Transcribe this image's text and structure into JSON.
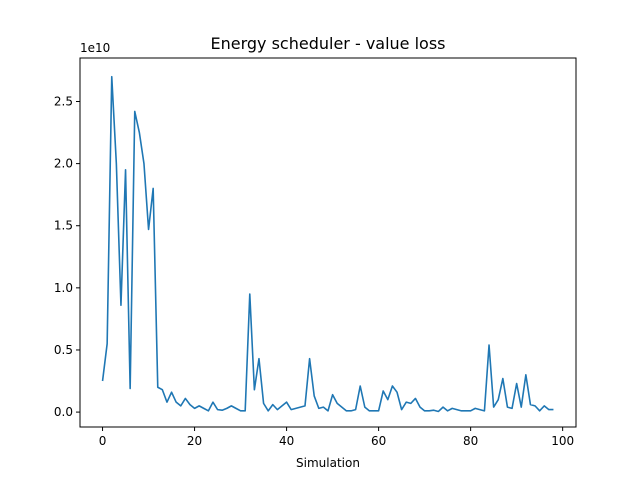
{
  "chart_data": {
    "type": "line",
    "title": "Energy scheduler - value loss",
    "xlabel": "Simulation",
    "ylabel": "",
    "y_offset_label": "1e10",
    "y_multiplier": 10000000000,
    "xlim": [
      -4.9,
      102.9
    ],
    "ylim": [
      -1200000000.0,
      28500000000.0
    ],
    "x_ticks": [
      0,
      20,
      40,
      60,
      80,
      100
    ],
    "x_tick_labels": [
      "0",
      "20",
      "40",
      "60",
      "80",
      "100"
    ],
    "y_ticks": [
      0.0,
      0.5,
      1.0,
      1.5,
      2.0,
      2.5
    ],
    "y_tick_labels": [
      "0.0",
      "0.5",
      "1.0",
      "1.5",
      "2.0",
      "2.5"
    ],
    "grid": false,
    "legend": "none",
    "series": [
      {
        "color": "#1f77b4",
        "x": [
          0,
          1,
          2,
          3,
          4,
          5,
          6,
          7,
          8,
          9,
          10,
          11,
          12,
          13,
          14,
          15,
          16,
          17,
          18,
          19,
          20,
          21,
          22,
          23,
          24,
          25,
          26,
          27,
          28,
          29,
          30,
          31,
          32,
          33,
          34,
          35,
          36,
          37,
          38,
          39,
          40,
          41,
          42,
          43,
          44,
          45,
          46,
          47,
          48,
          49,
          50,
          51,
          52,
          53,
          54,
          55,
          56,
          57,
          58,
          59,
          60,
          61,
          62,
          63,
          64,
          65,
          66,
          67,
          68,
          69,
          70,
          71,
          72,
          73,
          74,
          75,
          76,
          77,
          78,
          79,
          80,
          81,
          82,
          83,
          84,
          85,
          86,
          87,
          88,
          89,
          90,
          91,
          92,
          93,
          94,
          95,
          96,
          97,
          98
        ],
        "values": [
          2500000000.0,
          5500000000.0,
          27000000000.0,
          20000000000.0,
          8600000000.0,
          19500000000.0,
          1900000000.0,
          24200000000.0,
          22500000000.0,
          20000000000.0,
          14700000000.0,
          18000000000.0,
          2000000000.0,
          1800000000.0,
          800000000.0,
          1600000000.0,
          800000000.0,
          500000000.0,
          1100000000.0,
          600000000.0,
          300000000.0,
          500000000.0,
          300000000.0,
          100000000.0,
          800000000.0,
          200000000.0,
          150000000.0,
          300000000.0,
          500000000.0,
          300000000.0,
          100000000.0,
          100000000.0,
          9500000000.0,
          1800000000.0,
          4300000000.0,
          700000000.0,
          100000000.0,
          600000000.0,
          200000000.0,
          500000000.0,
          800000000.0,
          200000000.0,
          300000000.0,
          400000000.0,
          500000000.0,
          4300000000.0,
          1300000000.0,
          300000000.0,
          400000000.0,
          100000000.0,
          1400000000.0,
          700000000.0,
          400000000.0,
          100000000.0,
          100000000.0,
          200000000.0,
          2100000000.0,
          400000000.0,
          100000000.0,
          100000000.0,
          100000000.0,
          1700000000.0,
          1000000000.0,
          2100000000.0,
          1600000000.0,
          200000000.0,
          800000000.0,
          700000000.0,
          1100000000.0,
          400000000.0,
          100000000.0,
          100000000.0,
          150000000.0,
          50000000.0,
          400000000.0,
          100000000.0,
          300000000.0,
          200000000.0,
          100000000.0,
          100000000.0,
          100000000.0,
          300000000.0,
          200000000.0,
          100000000.0,
          5400000000.0,
          400000000.0,
          1000000000.0,
          2700000000.0,
          400000000.0,
          300000000.0,
          2300000000.0,
          400000000.0,
          3000000000.0,
          600000000.0,
          500000000.0,
          100000000.0,
          500000000.0,
          200000000.0,
          200000000.0
        ]
      }
    ]
  }
}
